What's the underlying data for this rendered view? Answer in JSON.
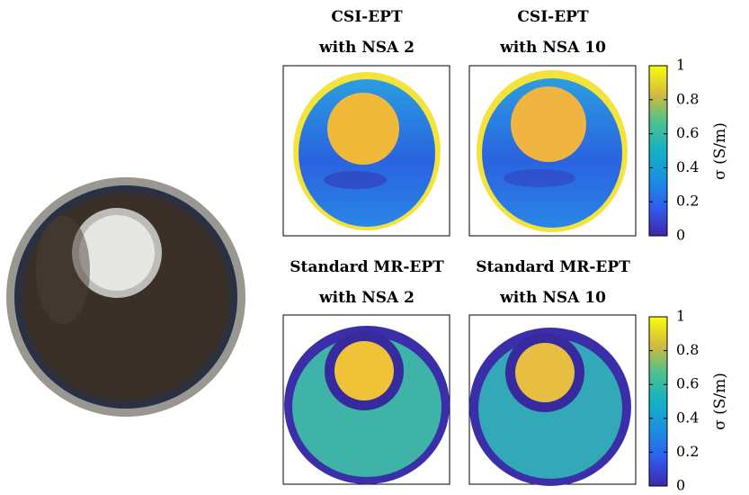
{
  "panels": [
    {
      "title": [
        "CSI-EPT",
        "with NSA 2"
      ]
    },
    {
      "title": [
        "CSI-EPT",
        "with NSA 10"
      ]
    },
    {
      "title": [
        "Standard MR-EPT",
        "with NSA 2"
      ]
    },
    {
      "title": [
        "Standard MR-EPT",
        "with NSA 10"
      ]
    }
  ],
  "colorbars": [
    {
      "label": "σ (S/m)",
      "lim": [
        0,
        1
      ],
      "ticks": [
        0,
        0.2,
        0.4,
        0.6,
        0.8,
        1
      ]
    },
    {
      "label": "σ (S/m)",
      "lim": [
        0,
        1
      ],
      "ticks": [
        0,
        0.2,
        0.4,
        0.6,
        0.8,
        1
      ]
    }
  ]
}
